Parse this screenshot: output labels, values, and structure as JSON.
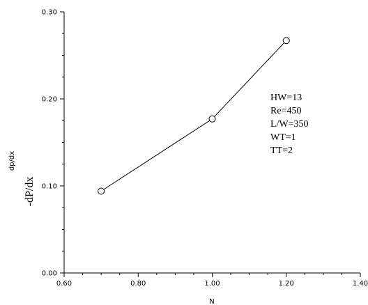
{
  "chart_data": {
    "type": "line",
    "xlabel": "N",
    "ylabel": "dp/dx",
    "ylabel_outer": "-dP/dx",
    "xlim": [
      0.6,
      1.4
    ],
    "ylim": [
      0.0,
      0.3
    ],
    "x_ticks": [
      "0.60",
      "0.80",
      "1.00",
      "1.20",
      "1.40"
    ],
    "y_ticks": [
      "0.00",
      "0.10",
      "0.20",
      "0.30"
    ],
    "x_minor_step": 0.05,
    "y_minor_step": 0.025,
    "grid": false,
    "marker": "open-circle",
    "line_color": "#000000",
    "series": [
      {
        "x": [
          0.7,
          1.0,
          1.2
        ],
        "y": [
          0.094,
          0.177,
          0.267
        ]
      }
    ],
    "annotations": [
      "HW=13",
      "Re=450",
      "L/W=350",
      "WT=1",
      "TT=2"
    ]
  }
}
